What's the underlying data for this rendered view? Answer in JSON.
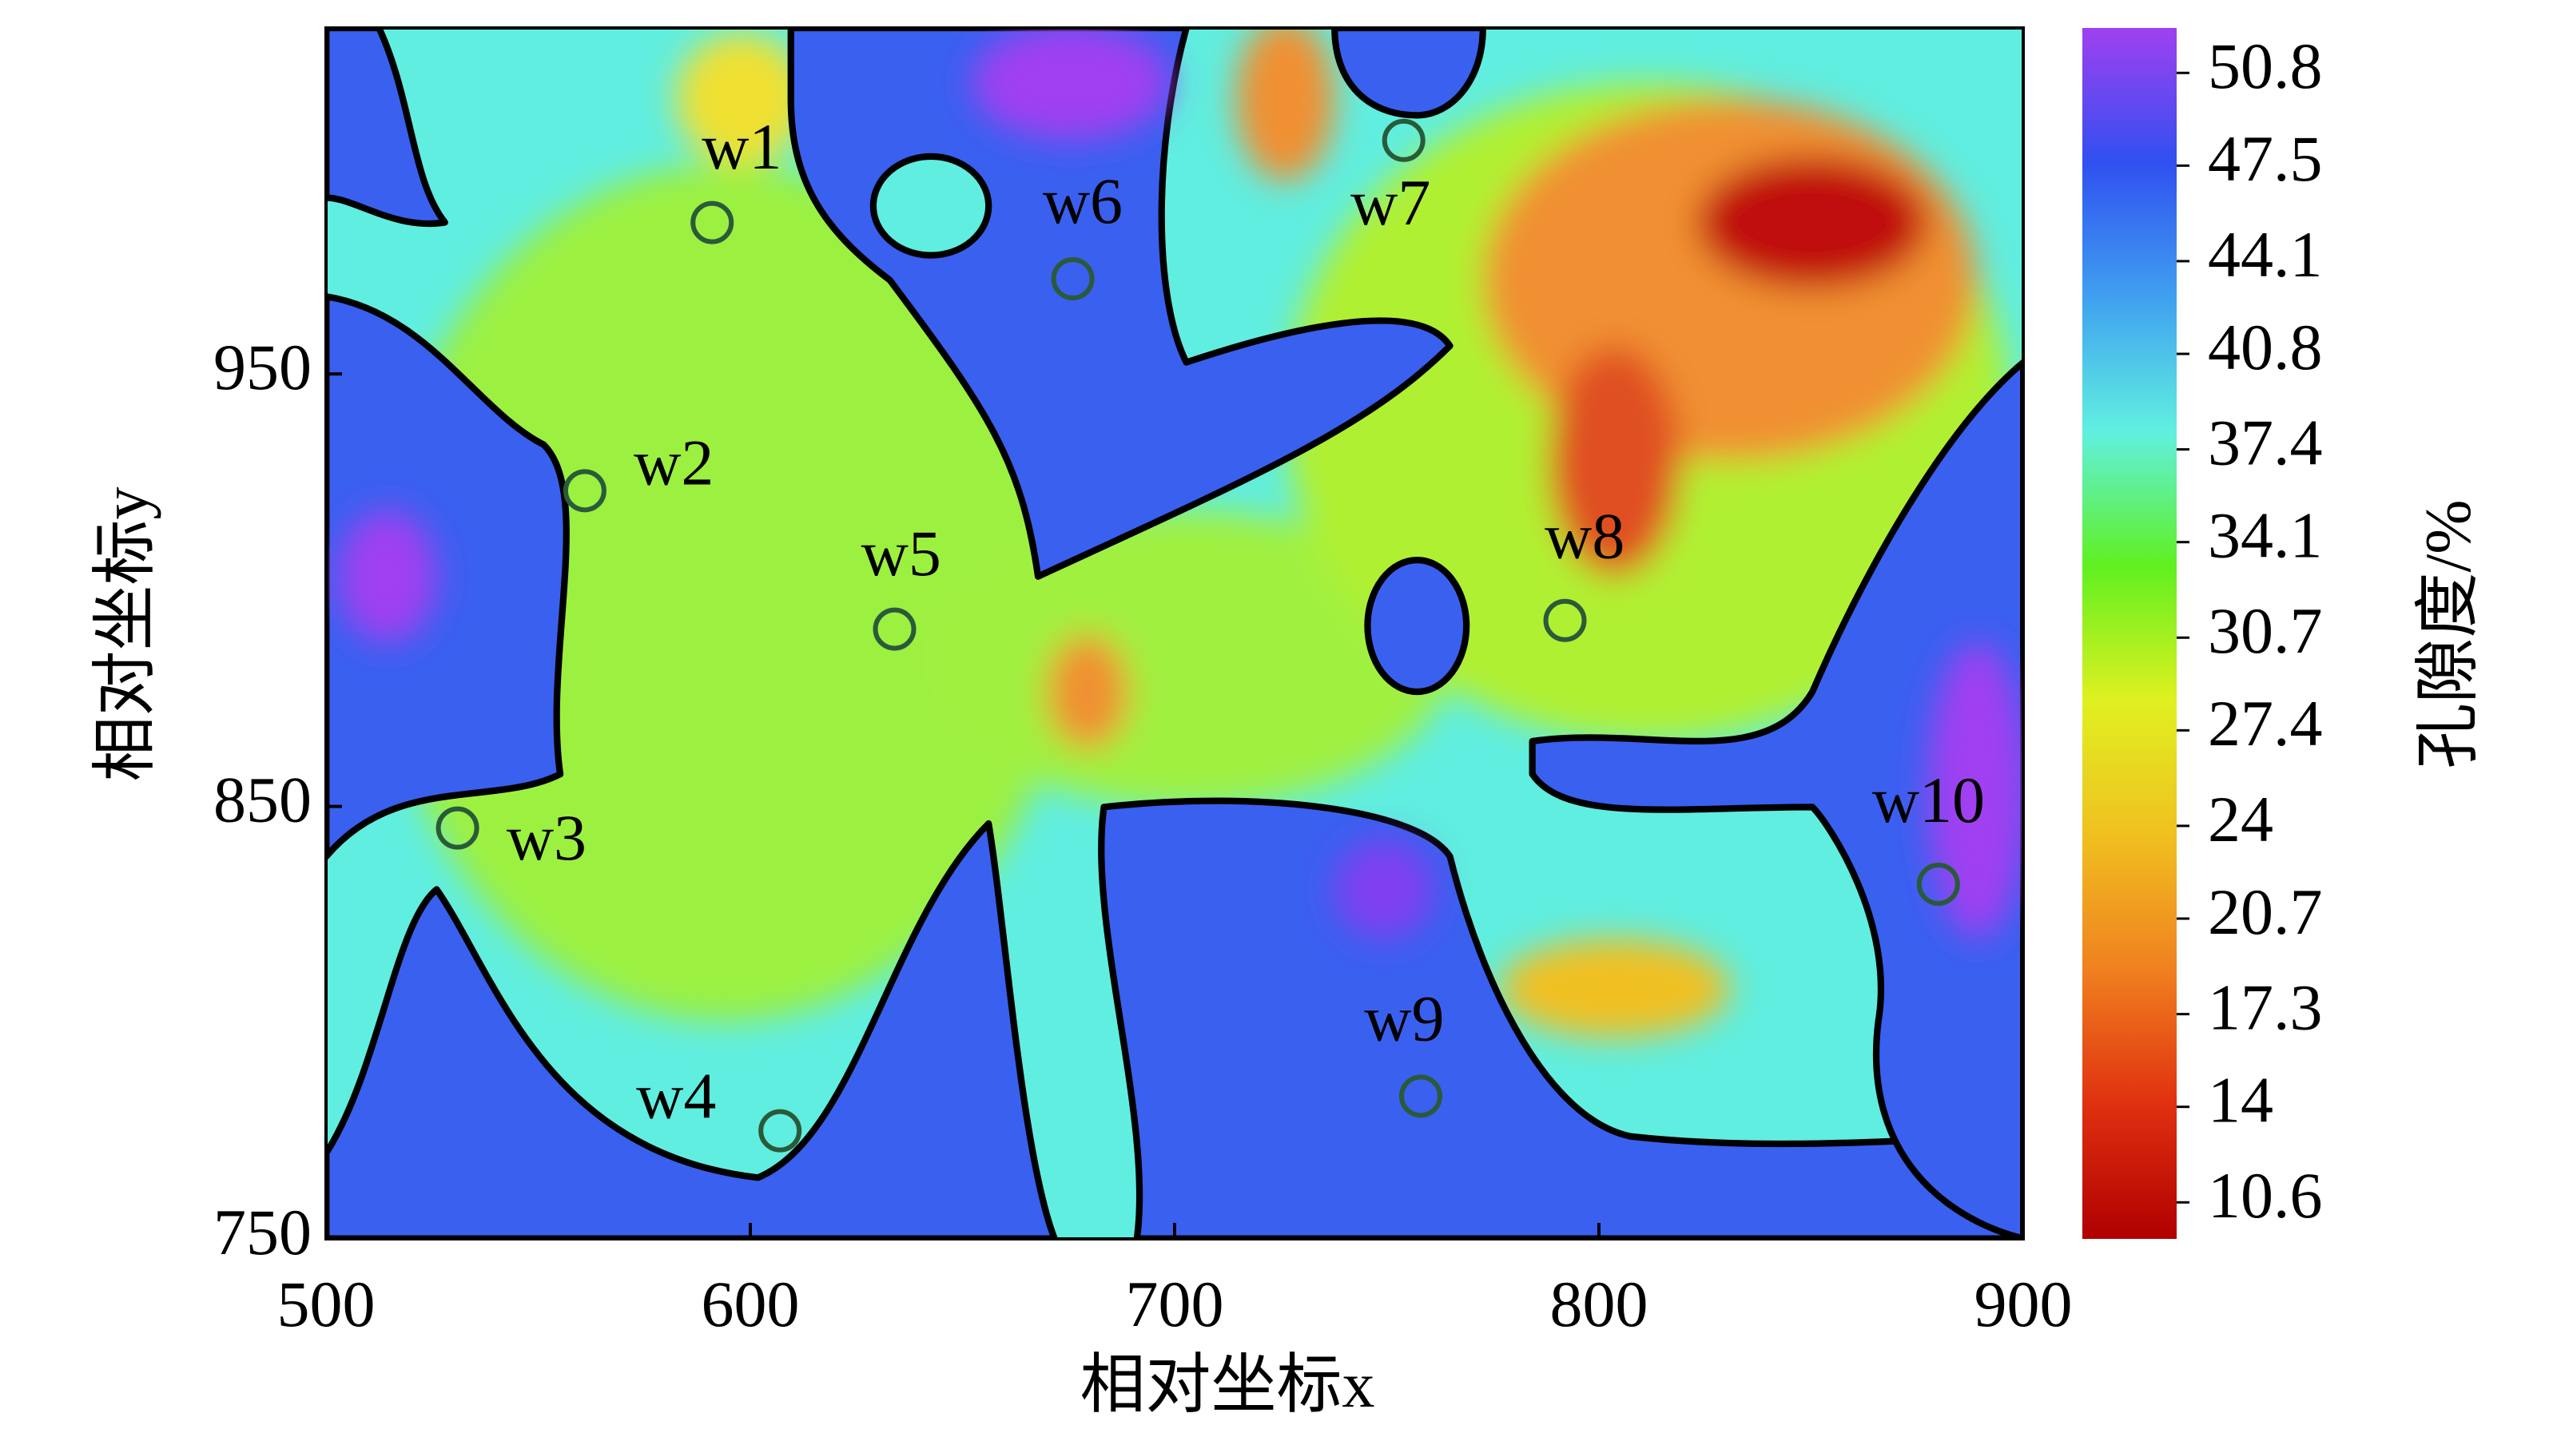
{
  "chart_data": {
    "type": "scatter",
    "x_label": "相对坐标x",
    "y_label": "相对坐标y",
    "xlim": [
      500,
      900
    ],
    "ylim": [
      750,
      1030
    ],
    "xticks": [
      500,
      600,
      700,
      800,
      900
    ],
    "yticks": [
      750,
      850,
      950
    ],
    "x": [
      591,
      561,
      531,
      607,
      634,
      676,
      754,
      792,
      758,
      880
    ],
    "values": [
      985,
      923,
      845,
      775,
      891,
      972,
      1004,
      893,
      783,
      832
    ],
    "point_labels": [
      "w1",
      "w2",
      "w3",
      "w4",
      "w5",
      "w6",
      "w7",
      "w8",
      "w9",
      "w10"
    ],
    "marker_color": "#2a5a3a",
    "colorbar": {
      "label": "孔隙度/%",
      "lim": [
        9.3,
        52.4
      ],
      "ticks": [
        10.6,
        14.0,
        17.3,
        20.7,
        24.0,
        27.4,
        30.7,
        34.1,
        37.4,
        40.8,
        44.1,
        47.5,
        50.8
      ],
      "colors": [
        "#b00000",
        "#e03010",
        "#f08020",
        "#f0c020",
        "#e0f020",
        "#60f020",
        "#60f0e0",
        "#40a0f0",
        "#3050f0",
        "#a040f0"
      ]
    }
  }
}
